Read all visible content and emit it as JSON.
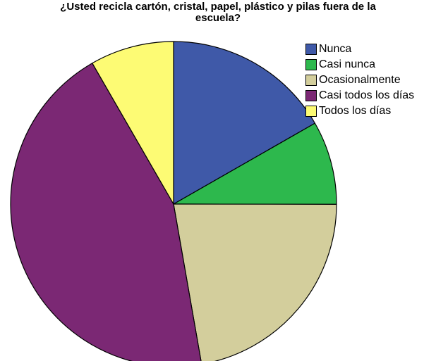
{
  "chart_data": {
    "type": "pie",
    "title_line1": "¿Usted recicla cartón, cristal, papel, plástico y pilas fuera de la",
    "title_line2": "escuela?",
    "categories": [
      "Nunca",
      "Casi nunca",
      "Ocasionalmente",
      "Casi todos los días",
      "Todos los días"
    ],
    "values": [
      16.7,
      8.3,
      22.2,
      44.4,
      8.3
    ],
    "colors": [
      "#3f59a8",
      "#2db84d",
      "#d3ce9c",
      "#7b2874",
      "#fdfb74"
    ],
    "start_angle_deg": 0,
    "direction": "clockwise",
    "legend_position": "top-right"
  }
}
